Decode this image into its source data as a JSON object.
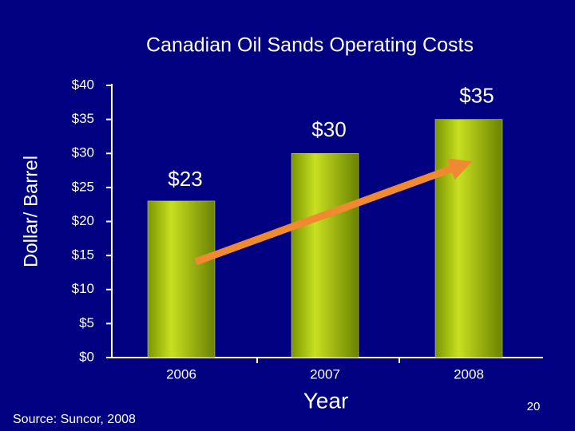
{
  "chart_data": {
    "type": "bar",
    "title": "Canadian Oil Sands Operating Costs",
    "ylabel": "Dollar/ Barrel",
    "xlabel": "Year",
    "categories": [
      "2006",
      "2007",
      "2008"
    ],
    "values": [
      23,
      30,
      35
    ],
    "value_labels": [
      "$23",
      "$30",
      "$35"
    ],
    "color": "#99bb00",
    "ylim": [
      0,
      40
    ],
    "yticks": [
      {
        "value": 0,
        "label": "$0"
      },
      {
        "value": 5,
        "label": "$5"
      },
      {
        "value": 10,
        "label": "$10"
      },
      {
        "value": 15,
        "label": "$15"
      },
      {
        "value": 20,
        "label": "$20"
      },
      {
        "value": 25,
        "label": "$25"
      },
      {
        "value": 30,
        "label": "$30"
      },
      {
        "value": 35,
        "label": "$35"
      },
      {
        "value": 40,
        "label": "$40"
      }
    ],
    "source": "Source: Suncor, 2008",
    "page_number": "20"
  }
}
